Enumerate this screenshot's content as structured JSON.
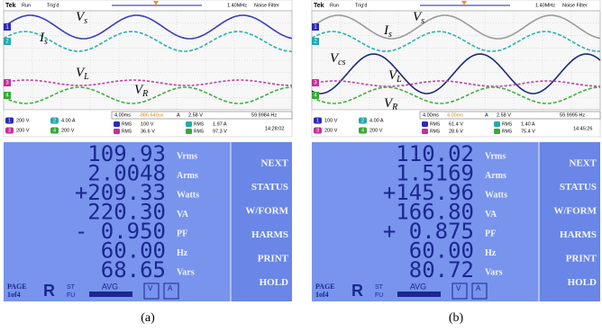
{
  "panels": [
    {
      "caption": "(a)",
      "scope": {
        "brand": "Tek",
        "status": "Run",
        "trigger": "Trig'd",
        "bandwidth": "1.40MHz",
        "filter": "Noise Filter",
        "channels": [
          "1",
          "2",
          "3",
          "4"
        ],
        "trace_labels": [
          {
            "main": "V",
            "sub": "s"
          },
          {
            "main": "I",
            "sub": "s"
          },
          {
            "main": "V",
            "sub": "L"
          },
          {
            "main": "V",
            "sub": "R"
          }
        ],
        "channel_scales": [
          "200 V",
          "4.00 A",
          "200 V",
          "200 V"
        ],
        "timebase": "4.00ms",
        "trigger_position": "-886.640us",
        "trigger_source": "A",
        "trigger_level": "2.58 V",
        "frequency": "59.9984 Hz",
        "measurement_type": "RMS",
        "measurements": [
          "100 V",
          "1.97 A",
          "36.6 V",
          "97.3 V"
        ],
        "clock": "14:28:02"
      },
      "meter": {
        "readings": [
          {
            "value": "109.93",
            "unit": "Vrms"
          },
          {
            "value": "2.0048",
            "unit": "Arms"
          },
          {
            "value": "+209.33",
            "unit": "Watts"
          },
          {
            "value": "220.30",
            "unit": "VA"
          },
          {
            "value": "- 0.950",
            "unit": "PF"
          },
          {
            "value": "60.00",
            "unit": "Hz"
          },
          {
            "value": "68.65",
            "unit": "Vars"
          }
        ],
        "menu": [
          "NEXT",
          "STATUS",
          "W/FORM",
          "HARMS",
          "PRINT",
          "HOLD"
        ],
        "footer": {
          "page": "PAGE",
          "page_number": "1of4",
          "mode": "R",
          "st": "ST",
          "fu": "FU",
          "avg": "AVG",
          "v": "V",
          "a": "A"
        }
      }
    },
    {
      "caption": "(b)",
      "scope": {
        "brand": "Tek",
        "status": "Run",
        "trigger": "Trig'd",
        "bandwidth": "1.40MHz",
        "filter": "Noise Filter",
        "channels": [
          "1",
          "2",
          "3",
          "4"
        ],
        "trace_labels": [
          {
            "main": "V",
            "sub": "s"
          },
          {
            "main": "I",
            "sub": "s"
          },
          {
            "main": "V",
            "sub": "cs"
          },
          {
            "main": "V",
            "sub": "L"
          },
          {
            "main": "V",
            "sub": "R"
          }
        ],
        "channel_scales": [
          "100 V",
          "4.00 A",
          "200 V",
          "200 V"
        ],
        "timebase": "4.00ms",
        "trigger_position": "4.00ms",
        "trigger_source": "A",
        "trigger_level": "2.58 V",
        "frequency": "59.9995 Hz",
        "measurement_type": "RMS",
        "measurements": [
          "61.4 V",
          "1.40 A",
          "28.6 V",
          "75.4 V"
        ],
        "clock": "14:45:26"
      },
      "meter": {
        "readings": [
          {
            "value": "110.02",
            "unit": "Vrms"
          },
          {
            "value": "1.5169",
            "unit": "Arms"
          },
          {
            "value": "+145.96",
            "unit": "Watts"
          },
          {
            "value": "166.80",
            "unit": "VA"
          },
          {
            "value": "+ 0.875",
            "unit": "PF"
          },
          {
            "value": "60.00",
            "unit": "Hz"
          },
          {
            "value": "80.72",
            "unit": "Vars"
          }
        ],
        "menu": [
          "NEXT",
          "STATUS",
          "W/FORM",
          "HARMS",
          "PRINT",
          "HOLD"
        ],
        "footer": {
          "page": "PAGE",
          "page_number": "1of4",
          "mode": "R",
          "st": "ST",
          "fu": "FU",
          "avg": "AVG",
          "v": "V",
          "a": "A"
        }
      }
    }
  ]
}
